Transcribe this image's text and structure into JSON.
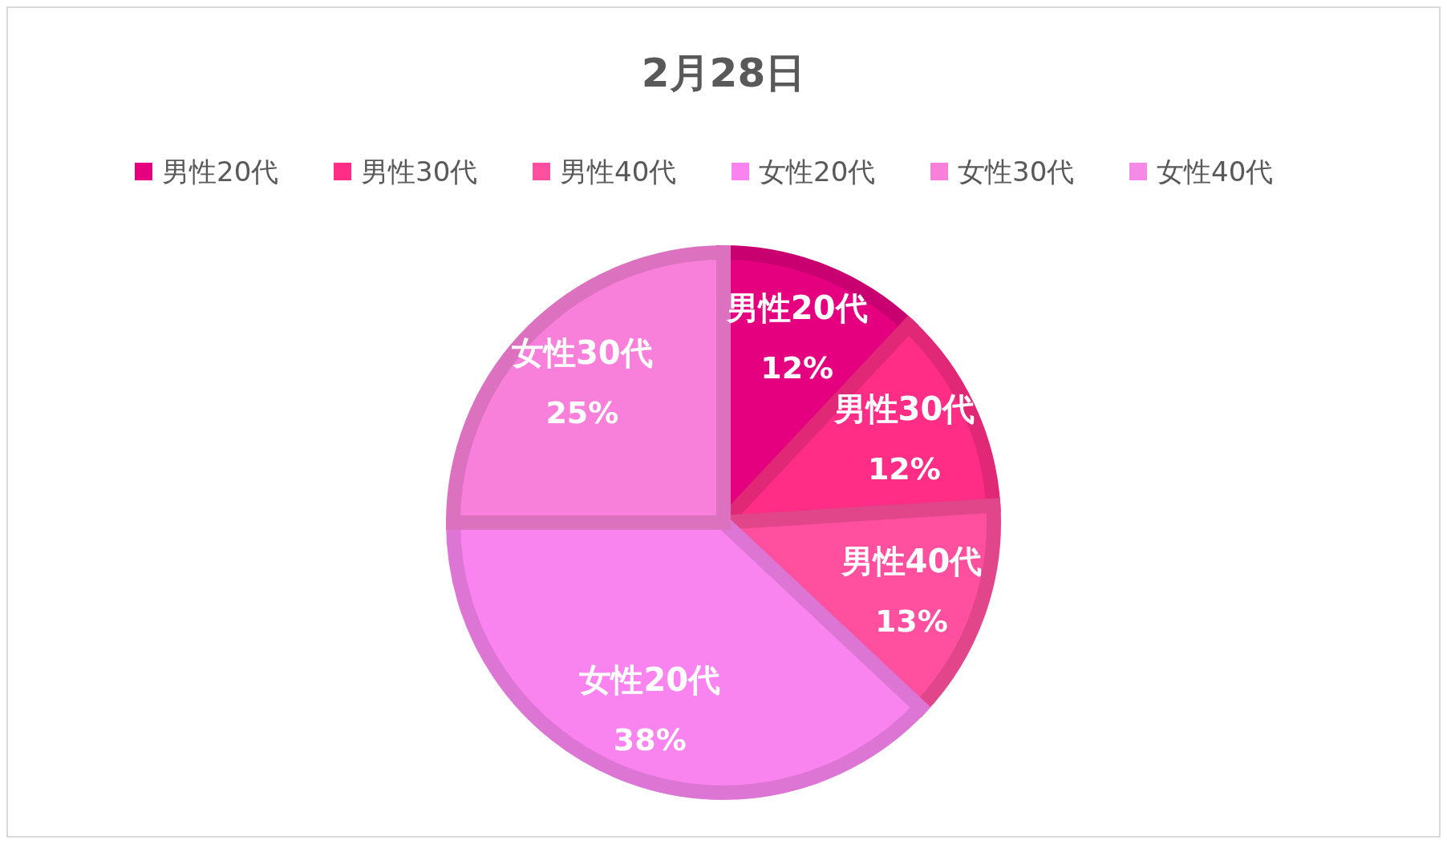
{
  "chart_data": {
    "type": "pie",
    "title": "2月28日",
    "categories": [
      "男性20代",
      "男性30代",
      "男性40代",
      "女性20代",
      "女性30代",
      "女性40代"
    ],
    "values": [
      12,
      12,
      13,
      38,
      25,
      0
    ],
    "colors": [
      "#e4007f",
      "#ff2d86",
      "#ff4f9e",
      "#f984f0",
      "#f980da",
      "#f58ae6"
    ],
    "value_labels": [
      "12%",
      "12%",
      "13%",
      "38%",
      "25%",
      null
    ],
    "legend": "top"
  }
}
